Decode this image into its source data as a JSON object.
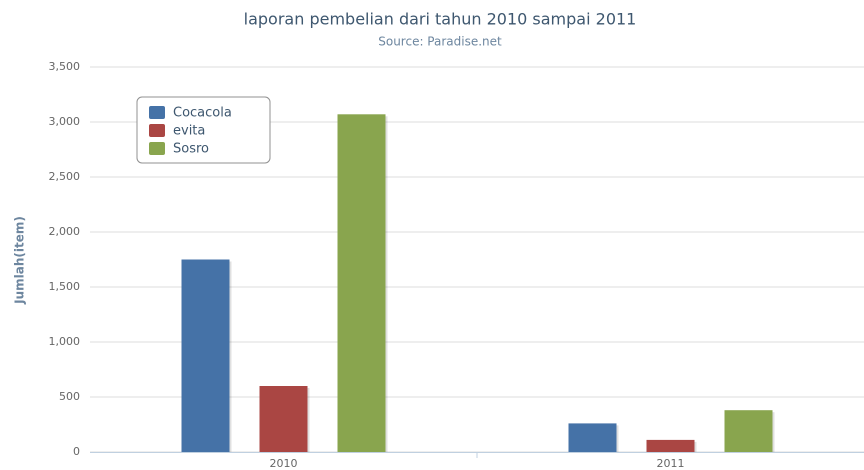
{
  "chart_data": {
    "type": "bar",
    "title": "laporan pembelian dari tahun 2010 sampai 2011",
    "subtitle": "Source: Paradise.net",
    "y_label": "Jumlah(item)",
    "categories": [
      "2010",
      "2011"
    ],
    "series": [
      {
        "name": "Cocacola",
        "color": "#4572a7",
        "values": [
          1750,
          260
        ]
      },
      {
        "name": "evita",
        "color": "#aa4643",
        "values": [
          600,
          110
        ]
      },
      {
        "name": "Sosro",
        "color": "#89a54e",
        "values": [
          3070,
          380
        ]
      }
    ],
    "ylim": [
      0,
      3500
    ],
    "yticks": [
      0,
      500,
      {
        "value": 1000,
        "label": "1,000"
      },
      {
        "value": 1500,
        "label": "1,500"
      },
      {
        "value": 2000,
        "label": "2,000"
      },
      {
        "value": 2500,
        "label": "2,500"
      },
      {
        "value": 3000,
        "label": "3,000"
      },
      {
        "value": 3500,
        "label": "3,500"
      }
    ],
    "grid": true,
    "legend": "top-left"
  }
}
